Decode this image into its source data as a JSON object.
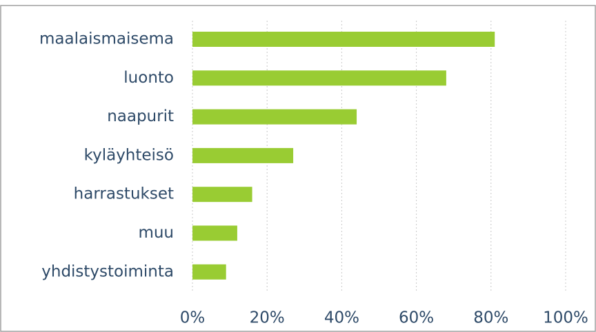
{
  "chart_data": {
    "type": "hbar",
    "categories": [
      "maalaismaisema",
      "luonto",
      "naapurit",
      "kyläyhteisö",
      "harrastukset",
      "muu",
      "yhdistystoiminta"
    ],
    "values": [
      81,
      68,
      44,
      27,
      16,
      12,
      9
    ],
    "color": "#99cc33",
    "xlim": [
      0,
      100
    ],
    "xticks": [
      {
        "value": 0,
        "label": "0%"
      },
      {
        "value": 20,
        "label": "20%"
      },
      {
        "value": 40,
        "label": "40%"
      },
      {
        "value": 60,
        "label": "60%"
      },
      {
        "value": 80,
        "label": "80%"
      },
      {
        "value": 100,
        "label": "100%"
      }
    ],
    "grid": true
  }
}
